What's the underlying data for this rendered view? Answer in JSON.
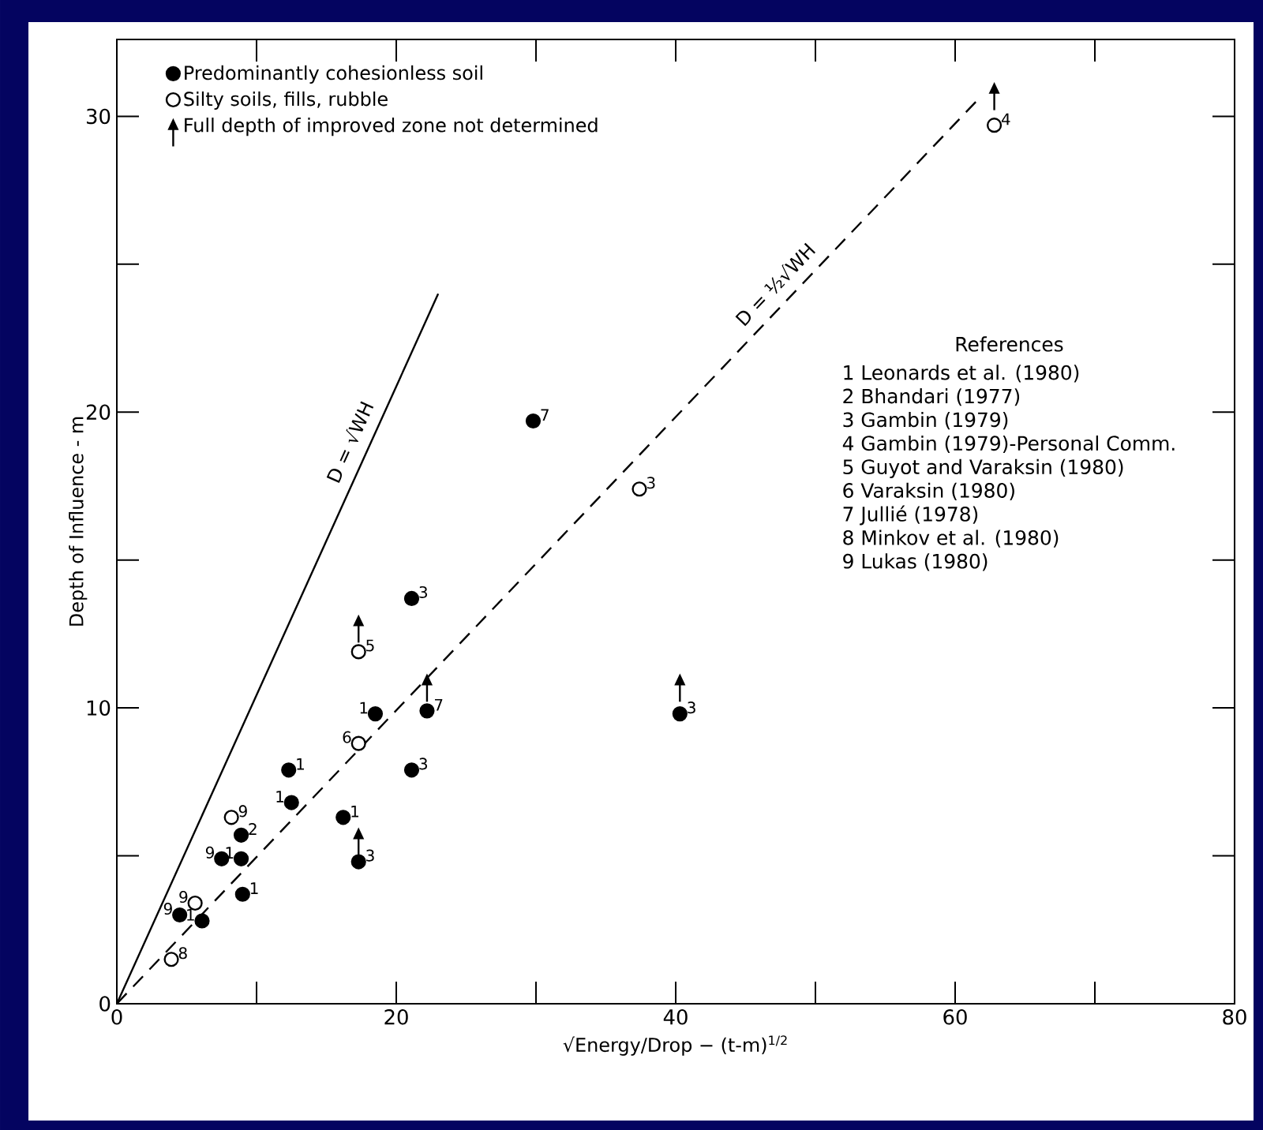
{
  "chart_data": {
    "type": "scatter",
    "xlabel": "√Energy/Drop  − (t-m)$^{1/2}$",
    "ylabel": "Depth of Influence - m",
    "xlim": [
      0,
      80
    ],
    "ylim": [
      0,
      32.6
    ],
    "xticks": [
      0,
      {
        "value": 10,
        "label": null
      },
      20,
      {
        "value": 30,
        "label": null
      },
      40,
      {
        "value": 50,
        "label": null
      },
      60,
      {
        "value": 70,
        "label": null
      },
      80
    ],
    "yticks": [
      0,
      {
        "value": 5,
        "label": null
      },
      10,
      {
        "value": 15,
        "label": null
      },
      20,
      {
        "value": 25,
        "label": null
      },
      30
    ],
    "grid": false,
    "legend": "top left",
    "series": [
      {
        "name": "Predominantly cohesionless soil",
        "color": "#000000",
        "marker": "circle",
        "x": [
          4.5,
          6.1,
          9.0,
          7.5,
          8.9,
          8.9,
          12.3,
          12.5,
          16.2,
          17.3,
          18.5,
          22.2,
          21.1,
          21.1,
          29.8,
          40.3
        ],
        "values": [
          3.0,
          2.8,
          3.7,
          4.9,
          4.9,
          5.7,
          7.9,
          6.8,
          6.3,
          4.8,
          9.8,
          9.9,
          7.9,
          13.7,
          19.7,
          9.8
        ]
      },
      {
        "name": "Silty soils, fills, rubble",
        "color": "#ffffff",
        "marker": "circle",
        "x": [
          3.9,
          5.6,
          8.2,
          17.3,
          17.3,
          37.4,
          62.8
        ],
        "values": [
          1.5,
          3.4,
          6.3,
          8.8,
          11.9,
          17.4,
          29.7
        ]
      },
      {
        "name": "Full depth of improved zone not determined",
        "color": "#000000",
        "marker": "triangle",
        "x": [
          17.3,
          22.2,
          40.3,
          17.3,
          62.8
        ],
        "values": [
          5.7,
          10.9,
          10.9,
          12.9,
          30.9
        ]
      },
      {
        "name": "D = √WH",
        "type": "line",
        "color": "#000000",
        "line_style": "solid",
        "marker": "none",
        "x": [
          0,
          23
        ],
        "values": [
          0,
          24
        ]
      },
      {
        "name": "D = ½√WH",
        "type": "line",
        "color": "#000000",
        "line_style": "dashed",
        "marker": "none",
        "x": [
          0,
          61.7
        ],
        "values": [
          0,
          30.6
        ]
      }
    ],
    "annotations": [
      "References",
      "1  Leonards et al. (1980)",
      "2  Bhandari (1977)",
      "3  Gambin (1979)",
      "4  Gambin (1979)-Personal Comm.",
      "5  Guyot and Varaksin (1980)",
      "6  Varaksin (1980)",
      "7  Jullié (1978)",
      "8  Minkov et al. (1980)",
      "9  Lukas (1980)",
      {
        "text": "9",
        "x": 4.5,
        "y": 3.0
      },
      {
        "text": "1",
        "x": 6.1,
        "y": 2.8
      },
      {
        "text": "1",
        "x": 9.0,
        "y": 3.7
      },
      {
        "text": "9",
        "x": 7.5,
        "y": 4.9
      },
      {
        "text": "1",
        "x": 8.9,
        "y": 4.9
      },
      {
        "text": "2",
        "x": 8.9,
        "y": 5.7
      },
      {
        "text": "1",
        "x": 12.3,
        "y": 7.9
      },
      {
        "text": "1",
        "x": 12.5,
        "y": 6.8
      },
      {
        "text": "1",
        "x": 16.2,
        "y": 6.3
      },
      {
        "text": "3",
        "x": 17.3,
        "y": 4.8
      },
      {
        "text": "1",
        "x": 18.5,
        "y": 9.8
      },
      {
        "text": "7",
        "x": 22.2,
        "y": 9.9
      },
      {
        "text": "3",
        "x": 21.1,
        "y": 7.9
      },
      {
        "text": "3",
        "x": 21.1,
        "y": 13.7
      },
      {
        "text": "7",
        "x": 29.8,
        "y": 19.7
      },
      {
        "text": "3",
        "x": 40.3,
        "y": 9.8
      },
      {
        "text": "8",
        "x": 3.9,
        "y": 1.5
      },
      {
        "text": "9",
        "x": 5.6,
        "y": 3.4
      },
      {
        "text": "9",
        "x": 8.2,
        "y": 6.3
      },
      {
        "text": "6",
        "x": 17.3,
        "y": 8.8
      },
      {
        "text": "5",
        "x": 17.3,
        "y": 11.9
      },
      {
        "text": "3",
        "x": 37.4,
        "y": 17.4
      },
      {
        "text": "4",
        "x": 62.8,
        "y": 29.7
      }
    ]
  }
}
